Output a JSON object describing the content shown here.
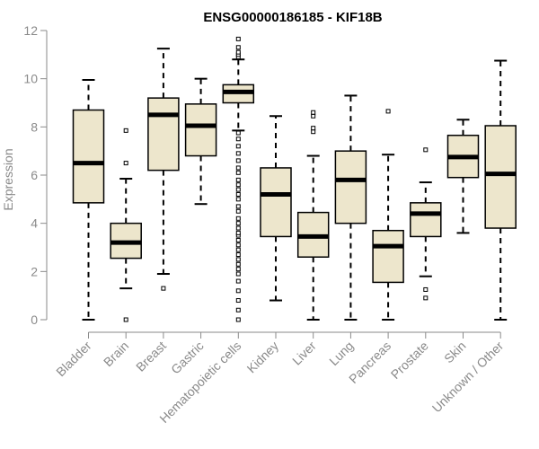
{
  "chart_data": {
    "type": "box",
    "title": "ENSG00000186185 - KIF18B",
    "xlabel": "",
    "ylabel": "Expression",
    "ylim": [
      0,
      12
    ],
    "yticks": [
      0,
      2,
      4,
      6,
      8,
      10,
      12
    ],
    "grid": false,
    "legend": "none",
    "colors": {
      "box_fill": "#ede6cc",
      "box_stroke": "#000000",
      "median": "#000000",
      "axis": "#8a8a8a",
      "text": "#8a8a8a",
      "title": "#000000"
    },
    "categories": [
      "Bladder",
      "Brain",
      "Breast",
      "Gastric",
      "Hematopoietic cells",
      "Kidney",
      "Liver",
      "Lung",
      "Pancreas",
      "Prostate",
      "Skin",
      "Unknown / Other"
    ],
    "boxes": [
      {
        "category": "Bladder",
        "whisker_low": 0.0,
        "q1": 4.85,
        "median": 6.5,
        "q3": 8.7,
        "whisker_high": 9.95,
        "outliers": []
      },
      {
        "category": "Brain",
        "whisker_low": 1.3,
        "q1": 2.55,
        "median": 3.2,
        "q3": 4.0,
        "whisker_high": 5.85,
        "outliers": [
          0.0,
          6.5,
          7.85
        ]
      },
      {
        "category": "Breast",
        "whisker_low": 1.9,
        "q1": 6.2,
        "median": 8.5,
        "q3": 9.2,
        "whisker_high": 11.25,
        "outliers": [
          1.3
        ]
      },
      {
        "category": "Gastric",
        "whisker_low": 4.8,
        "q1": 6.8,
        "median": 8.05,
        "q3": 8.95,
        "whisker_high": 10.0,
        "outliers": []
      },
      {
        "category": "Hematopoietic cells",
        "whisker_low": 7.85,
        "q1": 9.0,
        "median": 9.45,
        "q3": 9.75,
        "whisker_high": 10.8,
        "outliers": [
          0.0,
          0.4,
          0.8,
          1.2,
          1.6,
          1.9,
          2.1,
          2.3,
          2.5,
          2.7,
          2.9,
          3.1,
          3.3,
          3.5,
          3.6,
          3.8,
          4.0,
          4.2,
          4.5,
          4.7,
          5.0,
          5.2,
          5.4,
          5.6,
          5.8,
          6.1,
          6.3,
          6.6,
          6.9,
          7.2,
          7.5,
          7.75,
          10.9,
          11.0,
          11.1,
          11.3,
          11.65
        ]
      },
      {
        "category": "Kidney",
        "whisker_low": 0.8,
        "q1": 3.45,
        "median": 5.2,
        "q3": 6.3,
        "whisker_high": 8.45,
        "outliers": []
      },
      {
        "category": "Liver",
        "whisker_low": 0.0,
        "q1": 2.6,
        "median": 3.45,
        "q3": 4.45,
        "whisker_high": 6.8,
        "outliers": [
          7.8,
          7.95,
          8.45,
          8.6
        ]
      },
      {
        "category": "Lung",
        "whisker_low": 0.0,
        "q1": 4.0,
        "median": 5.8,
        "q3": 7.0,
        "whisker_high": 9.3,
        "outliers": []
      },
      {
        "category": "Pancreas",
        "whisker_low": 0.0,
        "q1": 1.55,
        "median": 3.05,
        "q3": 3.7,
        "whisker_high": 6.85,
        "outliers": [
          8.65
        ]
      },
      {
        "category": "Prostate",
        "whisker_low": 1.8,
        "q1": 3.45,
        "median": 4.4,
        "q3": 4.85,
        "whisker_high": 5.7,
        "outliers": [
          0.9,
          1.25,
          7.05
        ]
      },
      {
        "category": "Skin",
        "whisker_low": 3.6,
        "q1": 5.9,
        "median": 6.75,
        "q3": 7.65,
        "whisker_high": 8.3,
        "outliers": []
      },
      {
        "category": "Unknown / Other",
        "whisker_low": 0.0,
        "q1": 3.8,
        "median": 6.05,
        "q3": 8.05,
        "whisker_high": 10.75,
        "outliers": []
      }
    ]
  }
}
